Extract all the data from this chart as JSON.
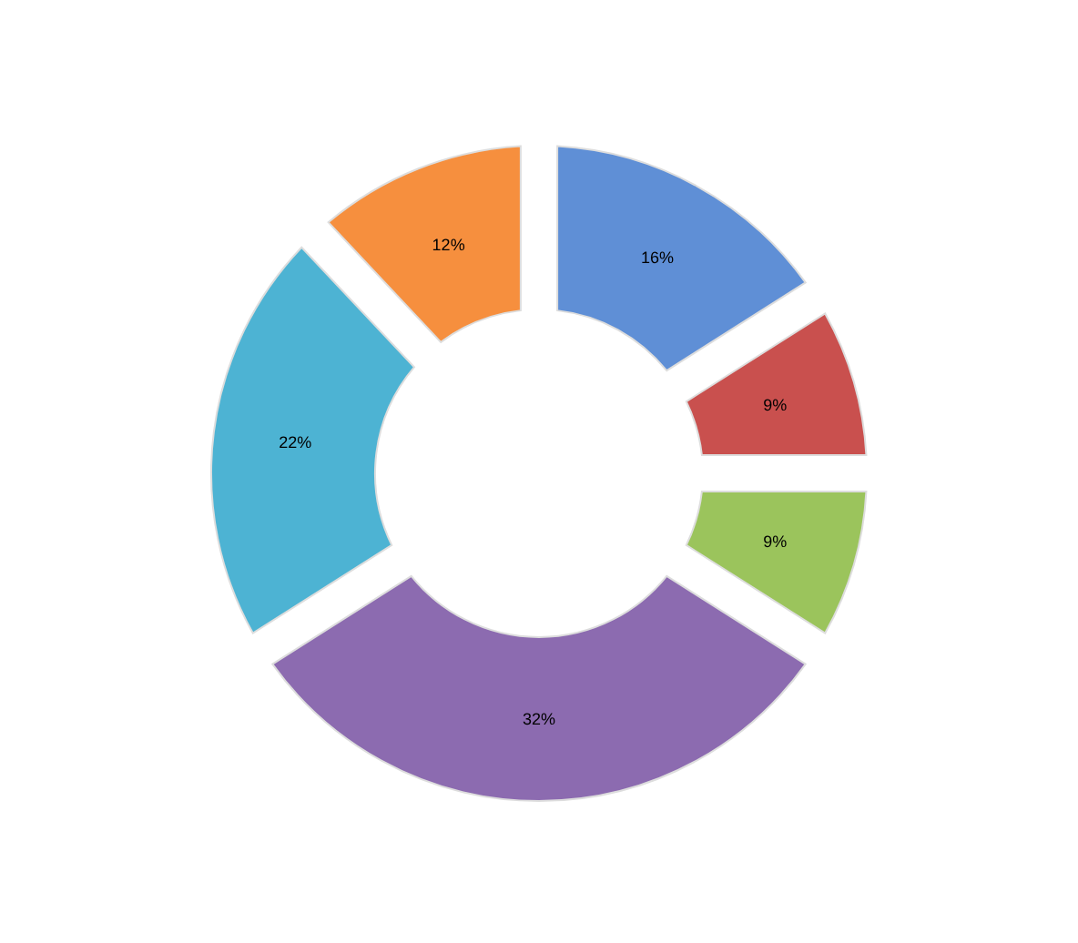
{
  "chart_data": {
    "type": "donut",
    "categories": [
      null,
      null,
      null,
      null,
      null,
      null
    ],
    "values": [
      16,
      9,
      9,
      32,
      22,
      12
    ],
    "value_labels": [
      "16%",
      "9%",
      "9%",
      "32%",
      "22%",
      "12%"
    ],
    "colors": [
      "#5f8fd6",
      "#c9504e",
      "#9bc45c",
      "#8c6bb0",
      "#4db3d3",
      "#f68f3e"
    ]
  }
}
